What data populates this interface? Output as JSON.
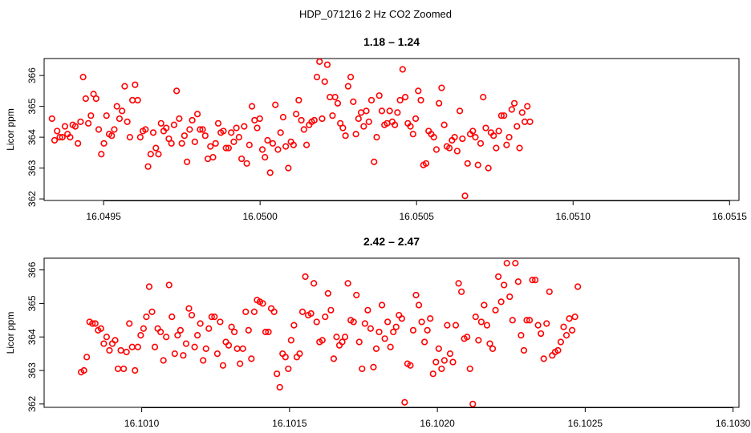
{
  "figure": {
    "title": "HDP_071216  2 Hz CO2 Zoomed"
  },
  "chart_data": [
    {
      "type": "scatter",
      "title": "1.18 – 1.24",
      "xlabel": "",
      "ylabel": "Licor ppm",
      "xlim": [
        16.04931,
        16.05153
      ],
      "ylim": [
        361.95,
        366.55
      ],
      "xticks": [
        {
          "value": 16.0495,
          "label": "16.0495"
        },
        {
          "value": 16.05,
          "label": "16.0500"
        },
        {
          "value": 16.0505,
          "label": "16.0505"
        },
        {
          "value": 16.051,
          "label": "16.0510"
        },
        {
          "value": 16.0515,
          "label": "16.0515"
        }
      ],
      "yticks": [
        362,
        363,
        364,
        365,
        366
      ],
      "marker_color": "#ff0000",
      "grid": false,
      "x_start": 16.049335,
      "x_step": 8.3e-06,
      "y": [
        364.6,
        363.9,
        364.2,
        364.0,
        364.0,
        364.35,
        364.1,
        364.0,
        364.4,
        364.35,
        363.8,
        364.5,
        365.95,
        365.25,
        364.45,
        364.7,
        365.4,
        365.25,
        364.25,
        363.45,
        363.8,
        364.7,
        364.1,
        364.05,
        364.25,
        365.0,
        364.6,
        364.85,
        365.65,
        364.5,
        364.0,
        365.2,
        365.7,
        365.2,
        364.0,
        364.2,
        364.25,
        363.05,
        363.45,
        364.15,
        363.65,
        363.45,
        364.45,
        364.2,
        364.3,
        363.95,
        363.8,
        364.4,
        365.5,
        364.6,
        363.8,
        364.05,
        363.2,
        364.25,
        364.55,
        363.85,
        364.75,
        364.25,
        364.25,
        364.05,
        363.3,
        363.7,
        363.35,
        363.8,
        364.45,
        364.15,
        364.2,
        363.65,
        363.65,
        364.15,
        363.85,
        364.3,
        364.0,
        363.3,
        364.35,
        363.15,
        363.75,
        365.0,
        364.55,
        364.3,
        364.6,
        363.6,
        363.35,
        363.9,
        362.85,
        363.8,
        365.05,
        363.6,
        364.15,
        364.65,
        363.7,
        363.0,
        363.85,
        363.75,
        364.75,
        365.2,
        364.55,
        364.25,
        363.75,
        364.4,
        364.5,
        364.55,
        365.95,
        366.45,
        364.6,
        365.8,
        366.35,
        365.3,
        364.7,
        365.3,
        365.1,
        364.45,
        364.3,
        364.05,
        365.65,
        365.95,
        365.15,
        364.1,
        364.6,
        364.8,
        364.35,
        364.85,
        364.5,
        365.2,
        363.2,
        364.0,
        365.35,
        364.85,
        364.4,
        364.45,
        364.85,
        364.5,
        364.4,
        364.8,
        365.2,
        366.2,
        365.3,
        364.45,
        364.35,
        364.1,
        364.6,
        365.5,
        365.2,
        363.1,
        363.15,
        364.2,
        364.1,
        364.0,
        363.6,
        365.1,
        365.6,
        364.4,
        363.7,
        363.65,
        363.9,
        364.0,
        363.55,
        364.85,
        363.95,
        362.1,
        363.15,
        364.1,
        364.2,
        364.0,
        363.1,
        363.8,
        365.3,
        364.3,
        363.0,
        364.15,
        364.05,
        363.65,
        364.2,
        364.7,
        364.7,
        363.75,
        364.0,
        364.9,
        365.1,
        364.35,
        363.65,
        364.8,
        364.5,
        365.0,
        364.5
      ]
    },
    {
      "type": "scatter",
      "title": "2.42 – 2.47",
      "xlabel": "",
      "ylabel": "Licor ppm",
      "xlim": [
        16.10067,
        16.10302
      ],
      "ylim": [
        361.9,
        366.35
      ],
      "xticks": [
        {
          "value": 16.101,
          "label": "16.1010"
        },
        {
          "value": 16.1015,
          "label": "16.1015"
        },
        {
          "value": 16.102,
          "label": "16.1020"
        },
        {
          "value": 16.1025,
          "label": "16.1025"
        },
        {
          "value": 16.103,
          "label": "16.1030"
        }
      ],
      "yticks": [
        362,
        363,
        364,
        365,
        366
      ],
      "marker_color": "#ff0000",
      "grid": false,
      "x_start": 16.100795,
      "x_step": 9.6e-06,
      "y": [
        362.95,
        363.0,
        363.4,
        364.45,
        364.4,
        364.4,
        364.2,
        364.25,
        363.8,
        364.0,
        363.6,
        363.8,
        363.9,
        363.05,
        363.6,
        363.05,
        363.55,
        364.4,
        363.7,
        363.0,
        363.7,
        364.05,
        364.25,
        364.6,
        365.5,
        364.75,
        363.7,
        364.25,
        364.15,
        363.3,
        364.0,
        365.55,
        364.6,
        363.5,
        364.05,
        364.2,
        363.45,
        363.8,
        364.85,
        364.65,
        363.7,
        364.05,
        364.4,
        363.3,
        363.65,
        364.25,
        364.6,
        364.6,
        363.5,
        364.45,
        363.15,
        363.85,
        363.75,
        364.3,
        364.15,
        363.65,
        363.2,
        363.65,
        364.75,
        364.2,
        363.35,
        364.75,
        365.1,
        365.05,
        365.0,
        364.15,
        364.15,
        364.85,
        364.75,
        362.9,
        362.5,
        363.5,
        363.4,
        363.05,
        363.9,
        364.35,
        363.4,
        363.5,
        364.75,
        365.8,
        364.65,
        364.7,
        365.6,
        364.45,
        363.85,
        363.9,
        364.6,
        365.3,
        364.8,
        363.35,
        364.0,
        363.75,
        363.85,
        364.0,
        365.6,
        364.5,
        364.45,
        365.25,
        363.85,
        363.05,
        364.4,
        364.8,
        364.25,
        363.1,
        363.65,
        364.15,
        364.95,
        363.95,
        364.45,
        363.7,
        364.15,
        364.3,
        364.65,
        364.55,
        362.05,
        363.2,
        363.15,
        364.2,
        365.25,
        364.95,
        364.45,
        363.85,
        364.2,
        364.55,
        362.9,
        363.25,
        363.65,
        363.05,
        363.3,
        364.35,
        363.5,
        363.25,
        364.35,
        365.6,
        365.35,
        363.95,
        364.0,
        363.05,
        362.0,
        364.6,
        363.9,
        364.45,
        364.95,
        364.35,
        363.8,
        363.65,
        364.8,
        365.8,
        365.05,
        365.55,
        366.2,
        365.2,
        364.5,
        366.2,
        365.65,
        364.05,
        363.6,
        364.5,
        364.5,
        365.7,
        365.7,
        364.35,
        364.1,
        363.35,
        364.4,
        365.35,
        363.45,
        363.55,
        363.6,
        363.85,
        364.3,
        364.05,
        364.55,
        364.2,
        364.6,
        365.5
      ]
    }
  ]
}
